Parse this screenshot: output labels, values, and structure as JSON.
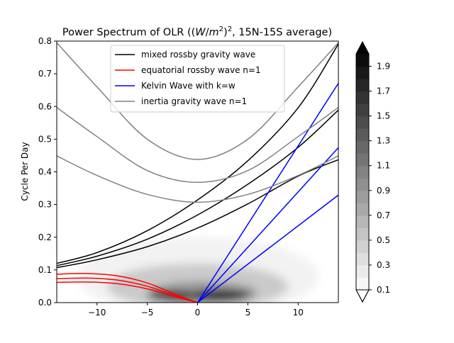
{
  "chart_data": {
    "type": "line",
    "title": "Power Spectrum of OLR ((W/m²)², 15N-15S average)",
    "title_parts": {
      "prefix": "Power Spectrum of OLR ((",
      "italic_w": "W",
      "slash": "/",
      "italic_m": "m",
      "exp2a": "2",
      "close": ")",
      "exp2b": "2",
      "suffix": ", 15N-15S average)"
    },
    "xlabel": "",
    "ylabel": "Cycle Per Day",
    "xlim": [
      -14,
      14
    ],
    "ylim": [
      0,
      0.8
    ],
    "x_ticks": [
      -10,
      -5,
      0,
      5,
      10
    ],
    "x_tick_labels": [
      "−10",
      "−5",
      "0",
      "5",
      "10"
    ],
    "y_ticks": [
      0.0,
      0.1,
      0.2,
      0.3,
      0.4,
      0.5,
      0.6,
      0.7,
      0.8
    ],
    "y_tick_labels": [
      "0.0",
      "0.1",
      "0.2",
      "0.3",
      "0.4",
      "0.5",
      "0.6",
      "0.7",
      "0.8"
    ],
    "legend": {
      "placement": "upper-center",
      "entries": [
        {
          "label": "mixed rossby gravity wave",
          "color": "#000000"
        },
        {
          "label": "equatorial rossby wave n=1",
          "color": "#ff0000"
        },
        {
          "label": "Kelvin Wave with k=w",
          "color": "#0000ff"
        },
        {
          "label": "inertia gravity wave n=1",
          "color": "#808080"
        }
      ]
    },
    "series": [
      {
        "group": "mixed rossby gravity wave",
        "color": "#000000",
        "x": [
          -14,
          -10,
          -5,
          0,
          5,
          10,
          14
        ],
        "y": [
          0.107,
          0.131,
          0.171,
          0.228,
          0.302,
          0.387,
          0.437
        ]
      },
      {
        "group": "mixed rossby gravity wave",
        "color": "#000000",
        "x": [
          -14,
          -10,
          -5,
          0,
          5,
          10,
          14
        ],
        "y": [
          0.113,
          0.142,
          0.194,
          0.268,
          0.362,
          0.475,
          0.589
        ]
      },
      {
        "group": "mixed rossby gravity wave",
        "color": "#000000",
        "x": [
          -14,
          -10,
          -5,
          0,
          5,
          10,
          14
        ],
        "y": [
          0.12,
          0.153,
          0.22,
          0.314,
          0.434,
          0.596,
          0.791
        ]
      },
      {
        "group": "equatorial rossby wave n=1",
        "color": "#ff0000",
        "x": [
          -14,
          -11,
          -8,
          -5,
          -2,
          0
        ],
        "y": [
          0.062,
          0.063,
          0.058,
          0.042,
          0.016,
          0.0
        ]
      },
      {
        "group": "equatorial rossby wave n=1",
        "color": "#ff0000",
        "x": [
          -14,
          -11,
          -8,
          -5,
          -2,
          0
        ],
        "y": [
          0.073,
          0.075,
          0.069,
          0.05,
          0.019,
          0.0
        ]
      },
      {
        "group": "equatorial rossby wave n=1",
        "color": "#ff0000",
        "x": [
          -14,
          -11,
          -8,
          -5,
          -2,
          0
        ],
        "y": [
          0.087,
          0.089,
          0.082,
          0.06,
          0.023,
          0.0
        ]
      },
      {
        "group": "Kelvin Wave with k=w",
        "color": "#0000ff",
        "x": [
          0,
          14
        ],
        "y": [
          0.0,
          0.329
        ]
      },
      {
        "group": "Kelvin Wave with k=w",
        "color": "#0000ff",
        "x": [
          0,
          14
        ],
        "y": [
          0.0,
          0.474
        ]
      },
      {
        "group": "Kelvin Wave with k=w",
        "color": "#0000ff",
        "x": [
          0,
          14
        ],
        "y": [
          0.0,
          0.671
        ]
      },
      {
        "group": "inertia gravity wave n=1",
        "color": "#808080",
        "x": [
          -14,
          -10,
          -5,
          0,
          5,
          10,
          14
        ],
        "y": [
          0.449,
          0.389,
          0.331,
          0.307,
          0.331,
          0.389,
          0.449
        ]
      },
      {
        "group": "inertia gravity wave n=1",
        "color": "#808080",
        "x": [
          -14,
          -10,
          -5,
          0,
          5,
          10,
          14
        ],
        "y": [
          0.597,
          0.508,
          0.404,
          0.368,
          0.404,
          0.508,
          0.597
        ]
      },
      {
        "group": "inertia gravity wave n=1",
        "color": "#808080",
        "x": [
          -14,
          -10,
          -5,
          0,
          5,
          10,
          14
        ],
        "y": [
          0.795,
          0.66,
          0.5,
          0.438,
          0.5,
          0.66,
          0.795
        ]
      }
    ],
    "power_contours": {
      "description_levels": "filled grayscale contours of power",
      "blobs": [
        {
          "x": 2.2,
          "y": 0.022,
          "rx": 3.0,
          "ry": 0.016,
          "level": 1.9
        },
        {
          "x": -2.5,
          "y": 0.02,
          "rx": 2.5,
          "ry": 0.015,
          "level": 1.7
        },
        {
          "x": 0.5,
          "y": 0.03,
          "rx": 5.5,
          "ry": 0.035,
          "level": 0.9
        },
        {
          "x": 0.0,
          "y": 0.05,
          "rx": 9.0,
          "ry": 0.07,
          "level": 0.5
        },
        {
          "x": 0.0,
          "y": 0.08,
          "rx": 12.0,
          "ry": 0.12,
          "level": 0.2
        }
      ]
    },
    "colorbar": {
      "ticks": [
        0.1,
        0.3,
        0.5,
        0.7,
        0.9,
        1.1,
        1.3,
        1.5,
        1.7,
        1.9
      ],
      "tick_labels": [
        "0.1",
        "0.3",
        "0.5",
        "0.7",
        "0.9",
        "1.1",
        "1.3",
        "1.5",
        "1.7",
        "1.9"
      ],
      "range": [
        0.1,
        2.0
      ],
      "levels": 19,
      "extend": "both",
      "colormap": "greys"
    }
  }
}
